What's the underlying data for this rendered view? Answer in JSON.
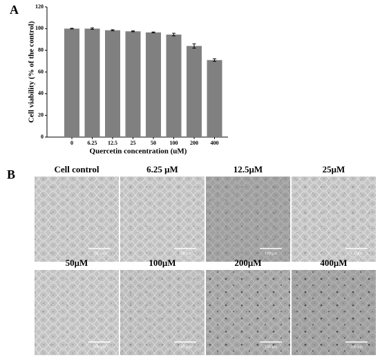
{
  "panel_a_label": "A",
  "chart_data": {
    "type": "bar",
    "categories": [
      "0",
      "6.25",
      "12.5",
      "25",
      "50",
      "100",
      "200",
      "400"
    ],
    "values": [
      100,
      100,
      98.5,
      97.5,
      96.5,
      94.5,
      84,
      71
    ],
    "errors": [
      0.3,
      0.7,
      0.5,
      0.4,
      0.4,
      1.2,
      2,
      1.2
    ],
    "color": "#808080",
    "ylim": [
      0,
      120
    ],
    "yticks": [
      0,
      20,
      40,
      60,
      80,
      100,
      120
    ],
    "ylabel": "Cell viability (% of the control)",
    "xlabel": "Quercetin concentration (uM)"
  },
  "panel_b": {
    "label": "B",
    "images": [
      {
        "title": "Cell control",
        "scale_bar": "100 μm"
      },
      {
        "title": "6.25 μM",
        "scale_bar": "100 μm"
      },
      {
        "title": "12.5μM",
        "scale_bar": "100 μm"
      },
      {
        "title": "25μM",
        "scale_bar": "100 μm"
      },
      {
        "title": "50μM",
        "scale_bar": "100 μm"
      },
      {
        "title": "100μM",
        "scale_bar": "100 μm"
      },
      {
        "title": "200μM",
        "scale_bar": "100 μm"
      },
      {
        "title": "400μM",
        "scale_bar": "100 μm"
      }
    ]
  }
}
